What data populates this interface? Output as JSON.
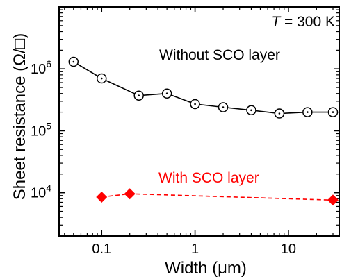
{
  "chart_data": {
    "type": "line",
    "annotation": {
      "prefix": "T",
      "suffix": " = 300 K"
    },
    "xlabel": "Width (μm)",
    "ylabel": "Sheet resistance (Ω/□)",
    "x_scale": "log",
    "y_scale": "log",
    "xlim": [
      0.035,
      35
    ],
    "ylim": [
      2000,
      10000000
    ],
    "x_ticks": [
      {
        "value": 0.1,
        "label": "0.1"
      },
      {
        "value": 1,
        "label": "1"
      },
      {
        "value": 10,
        "label": "10"
      }
    ],
    "y_ticks": [
      {
        "value": 10000,
        "base": "10",
        "exp": "4"
      },
      {
        "value": 100000,
        "base": "10",
        "exp": "5"
      },
      {
        "value": 1000000,
        "base": "10",
        "exp": "6"
      }
    ],
    "grid": false,
    "series": [
      {
        "name": "Without SCO layer",
        "color": "#000000",
        "marker": "open-circle-dot",
        "line": "solid",
        "x": [
          0.05,
          0.1,
          0.25,
          0.5,
          1,
          2,
          4,
          8,
          16,
          30
        ],
        "y": [
          1300000,
          700000,
          370000,
          400000,
          270000,
          240000,
          215000,
          190000,
          200000,
          200000
        ]
      },
      {
        "name": "With SCO layer",
        "color": "#ff0000",
        "marker": "diamond",
        "line": "dashed",
        "x": [
          0.1,
          0.2,
          30
        ],
        "y": [
          8500,
          9600,
          7600
        ]
      }
    ]
  }
}
